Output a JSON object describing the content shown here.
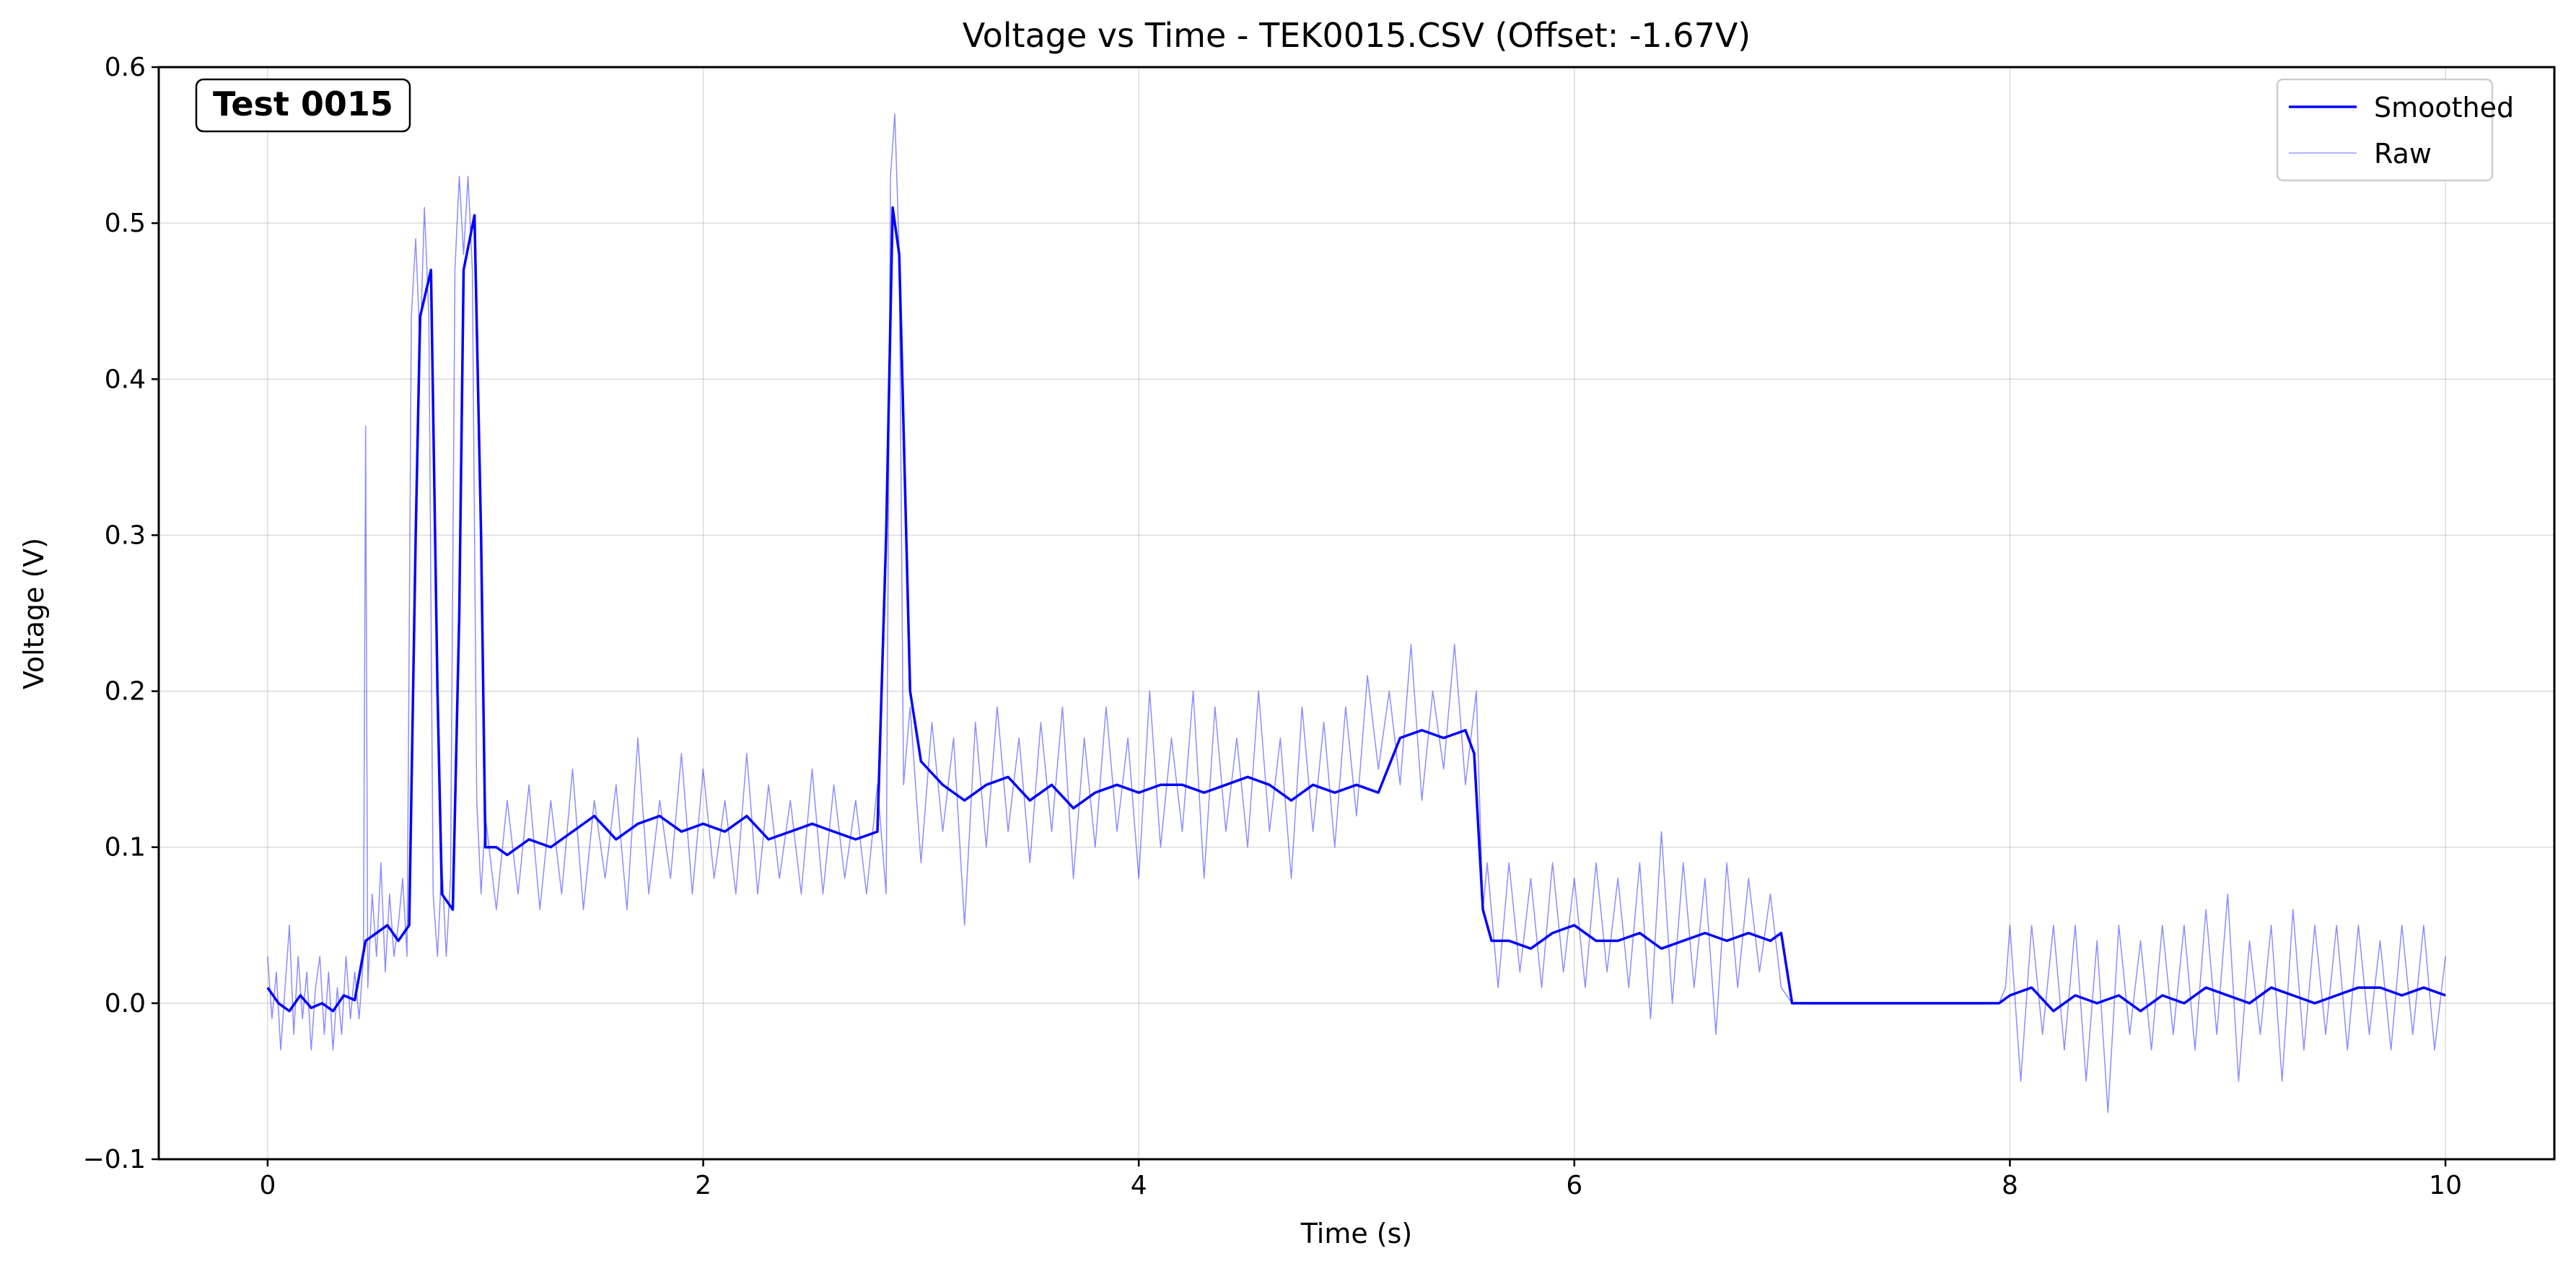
{
  "chart_data": {
    "type": "line",
    "title": "Voltage vs Time - TEK0015.CSV (Offset: -1.67V)",
    "xlabel": "Time (s)",
    "ylabel": "Voltage (V)",
    "xlim": [
      -0.5,
      10.5
    ],
    "ylim": [
      -0.1,
      0.6
    ],
    "xticks": [
      0,
      2,
      4,
      6,
      8,
      10
    ],
    "xtick_labels": [
      "0",
      "2",
      "4",
      "6",
      "8",
      "10"
    ],
    "yticks": [
      -0.1,
      0.0,
      0.1,
      0.2,
      0.3,
      0.4,
      0.5,
      0.6
    ],
    "ytick_labels": [
      "−0.1",
      "0.0",
      "0.1",
      "0.2",
      "0.3",
      "0.4",
      "0.5",
      "0.6"
    ],
    "grid": true,
    "legend_position": "top-right",
    "annotation": "Test 0015",
    "colors": {
      "smoothed": "#0000ff",
      "raw": "#0000ff"
    },
    "series": [
      {
        "name": "Smoothed",
        "style": "solid",
        "x": [
          0,
          0.05,
          0.1,
          0.15,
          0.2,
          0.25,
          0.3,
          0.35,
          0.4,
          0.45,
          0.5,
          0.55,
          0.6,
          0.65,
          0.68,
          0.7,
          0.75,
          0.78,
          0.8,
          0.85,
          0.88,
          0.9,
          0.95,
          0.98,
          1.0,
          1.05,
          1.1,
          1.2,
          1.3,
          1.4,
          1.5,
          1.6,
          1.7,
          1.8,
          1.9,
          2.0,
          2.1,
          2.2,
          2.3,
          2.4,
          2.5,
          2.6,
          2.7,
          2.8,
          2.84,
          2.87,
          2.9,
          2.95,
          3.0,
          3.1,
          3.2,
          3.3,
          3.4,
          3.5,
          3.6,
          3.7,
          3.8,
          3.9,
          4.0,
          4.1,
          4.2,
          4.3,
          4.4,
          4.5,
          4.6,
          4.7,
          4.8,
          4.9,
          5.0,
          5.1,
          5.2,
          5.3,
          5.4,
          5.5,
          5.54,
          5.58,
          5.62,
          5.7,
          5.8,
          5.9,
          6.0,
          6.1,
          6.2,
          6.3,
          6.4,
          6.5,
          6.6,
          6.7,
          6.8,
          6.9,
          6.95,
          7.0,
          7.5,
          7.95,
          8.0,
          8.1,
          8.2,
          8.3,
          8.4,
          8.5,
          8.6,
          8.7,
          8.8,
          8.9,
          9.0,
          9.1,
          9.2,
          9.3,
          9.4,
          9.5,
          9.6,
          9.7,
          9.8,
          9.9,
          10.0
        ],
        "y": [
          0.01,
          0.0,
          -0.005,
          0.005,
          -0.003,
          0.0,
          -0.005,
          0.005,
          0.002,
          0.04,
          0.045,
          0.05,
          0.04,
          0.05,
          0.3,
          0.44,
          0.47,
          0.2,
          0.07,
          0.06,
          0.25,
          0.47,
          0.505,
          0.3,
          0.1,
          0.1,
          0.095,
          0.105,
          0.1,
          0.11,
          0.12,
          0.105,
          0.115,
          0.12,
          0.11,
          0.115,
          0.11,
          0.12,
          0.105,
          0.11,
          0.115,
          0.11,
          0.105,
          0.11,
          0.3,
          0.51,
          0.48,
          0.2,
          0.155,
          0.14,
          0.13,
          0.14,
          0.145,
          0.13,
          0.14,
          0.125,
          0.135,
          0.14,
          0.135,
          0.14,
          0.14,
          0.135,
          0.14,
          0.145,
          0.14,
          0.13,
          0.14,
          0.135,
          0.14,
          0.135,
          0.17,
          0.175,
          0.17,
          0.175,
          0.16,
          0.06,
          0.04,
          0.04,
          0.035,
          0.045,
          0.05,
          0.04,
          0.04,
          0.045,
          0.035,
          0.04,
          0.045,
          0.04,
          0.045,
          0.04,
          0.045,
          0.0,
          0.0,
          0.0,
          0.005,
          0.01,
          -0.005,
          0.005,
          0.0,
          0.005,
          -0.005,
          0.005,
          0.0,
          0.01,
          0.005,
          0.0,
          0.01,
          0.005,
          0.0,
          0.005,
          0.01,
          0.01,
          0.005,
          0.01,
          0.005
        ]
      },
      {
        "name": "Raw",
        "style": "thin",
        "x": [
          0,
          0.02,
          0.04,
          0.06,
          0.08,
          0.1,
          0.12,
          0.14,
          0.16,
          0.18,
          0.2,
          0.22,
          0.24,
          0.26,
          0.28,
          0.3,
          0.32,
          0.34,
          0.36,
          0.38,
          0.4,
          0.42,
          0.44,
          0.45,
          0.46,
          0.48,
          0.5,
          0.52,
          0.54,
          0.56,
          0.58,
          0.6,
          0.62,
          0.64,
          0.66,
          0.68,
          0.7,
          0.72,
          0.74,
          0.76,
          0.78,
          0.8,
          0.82,
          0.84,
          0.86,
          0.88,
          0.9,
          0.92,
          0.94,
          0.96,
          0.98,
          1.0,
          1.05,
          1.1,
          1.15,
          1.2,
          1.25,
          1.3,
          1.35,
          1.4,
          1.45,
          1.5,
          1.55,
          1.6,
          1.65,
          1.7,
          1.75,
          1.8,
          1.85,
          1.9,
          1.95,
          2.0,
          2.05,
          2.1,
          2.15,
          2.2,
          2.25,
          2.3,
          2.35,
          2.4,
          2.45,
          2.5,
          2.55,
          2.6,
          2.65,
          2.7,
          2.75,
          2.8,
          2.84,
          2.86,
          2.88,
          2.9,
          2.92,
          2.95,
          3.0,
          3.05,
          3.1,
          3.15,
          3.2,
          3.25,
          3.3,
          3.35,
          3.4,
          3.45,
          3.5,
          3.55,
          3.6,
          3.65,
          3.7,
          3.75,
          3.8,
          3.85,
          3.9,
          3.95,
          4.0,
          4.05,
          4.1,
          4.15,
          4.2,
          4.25,
          4.3,
          4.35,
          4.4,
          4.45,
          4.5,
          4.55,
          4.6,
          4.65,
          4.7,
          4.75,
          4.8,
          4.85,
          4.9,
          4.95,
          5.0,
          5.05,
          5.1,
          5.15,
          5.2,
          5.25,
          5.3,
          5.35,
          5.4,
          5.45,
          5.5,
          5.55,
          5.58,
          5.6,
          5.65,
          5.7,
          5.75,
          5.8,
          5.85,
          5.9,
          5.95,
          6.0,
          6.05,
          6.1,
          6.15,
          6.2,
          6.25,
          6.3,
          6.35,
          6.4,
          6.45,
          6.5,
          6.55,
          6.6,
          6.65,
          6.7,
          6.75,
          6.8,
          6.85,
          6.9,
          6.95,
          7.0,
          7.5,
          7.95,
          7.98,
          8.0,
          8.05,
          8.1,
          8.15,
          8.2,
          8.25,
          8.3,
          8.35,
          8.4,
          8.45,
          8.5,
          8.55,
          8.6,
          8.65,
          8.7,
          8.75,
          8.8,
          8.85,
          8.9,
          8.95,
          9.0,
          9.05,
          9.1,
          9.15,
          9.2,
          9.25,
          9.3,
          9.35,
          9.4,
          9.45,
          9.5,
          9.55,
          9.6,
          9.65,
          9.7,
          9.75,
          9.8,
          9.85,
          9.9,
          9.95,
          10.0
        ],
        "y": [
          0.03,
          -0.01,
          0.02,
          -0.03,
          0.01,
          0.05,
          -0.02,
          0.03,
          -0.01,
          0.02,
          -0.03,
          0.01,
          0.03,
          -0.02,
          0.02,
          -0.03,
          0.01,
          -0.02,
          0.03,
          -0.01,
          0.02,
          -0.01,
          0.03,
          0.37,
          0.01,
          0.07,
          0.03,
          0.09,
          0.02,
          0.07,
          0.03,
          0.05,
          0.08,
          0.03,
          0.44,
          0.49,
          0.42,
          0.51,
          0.44,
          0.07,
          0.03,
          0.09,
          0.03,
          0.08,
          0.47,
          0.53,
          0.48,
          0.53,
          0.47,
          0.13,
          0.07,
          0.12,
          0.06,
          0.13,
          0.07,
          0.14,
          0.06,
          0.13,
          0.07,
          0.15,
          0.06,
          0.13,
          0.08,
          0.14,
          0.06,
          0.17,
          0.07,
          0.13,
          0.08,
          0.16,
          0.07,
          0.15,
          0.08,
          0.13,
          0.07,
          0.16,
          0.07,
          0.14,
          0.08,
          0.13,
          0.07,
          0.15,
          0.07,
          0.14,
          0.08,
          0.13,
          0.07,
          0.14,
          0.07,
          0.53,
          0.57,
          0.48,
          0.14,
          0.19,
          0.09,
          0.18,
          0.11,
          0.17,
          0.05,
          0.18,
          0.1,
          0.19,
          0.11,
          0.17,
          0.09,
          0.18,
          0.11,
          0.19,
          0.08,
          0.17,
          0.1,
          0.19,
          0.11,
          0.17,
          0.08,
          0.2,
          0.1,
          0.17,
          0.11,
          0.2,
          0.08,
          0.19,
          0.11,
          0.17,
          0.1,
          0.2,
          0.11,
          0.17,
          0.08,
          0.19,
          0.11,
          0.18,
          0.1,
          0.19,
          0.12,
          0.21,
          0.15,
          0.2,
          0.14,
          0.23,
          0.13,
          0.2,
          0.15,
          0.23,
          0.14,
          0.2,
          0.06,
          0.09,
          0.01,
          0.09,
          0.02,
          0.08,
          0.01,
          0.09,
          0.02,
          0.08,
          0.01,
          0.09,
          0.02,
          0.08,
          0.01,
          0.09,
          -0.01,
          0.11,
          0.0,
          0.09,
          0.01,
          0.08,
          -0.02,
          0.09,
          0.01,
          0.08,
          0.02,
          0.07,
          0.01,
          0.0,
          0.0,
          0.0,
          0.01,
          0.05,
          -0.05,
          0.05,
          -0.02,
          0.05,
          -0.03,
          0.05,
          -0.05,
          0.04,
          -0.07,
          0.05,
          -0.02,
          0.04,
          -0.03,
          0.05,
          -0.02,
          0.05,
          -0.03,
          0.06,
          -0.02,
          0.07,
          -0.05,
          0.04,
          -0.02,
          0.05,
          -0.05,
          0.06,
          -0.03,
          0.05,
          -0.02,
          0.05,
          -0.03,
          0.05,
          -0.02,
          0.04,
          -0.03,
          0.05,
          -0.02,
          0.05,
          -0.03,
          0.03
        ]
      }
    ]
  }
}
